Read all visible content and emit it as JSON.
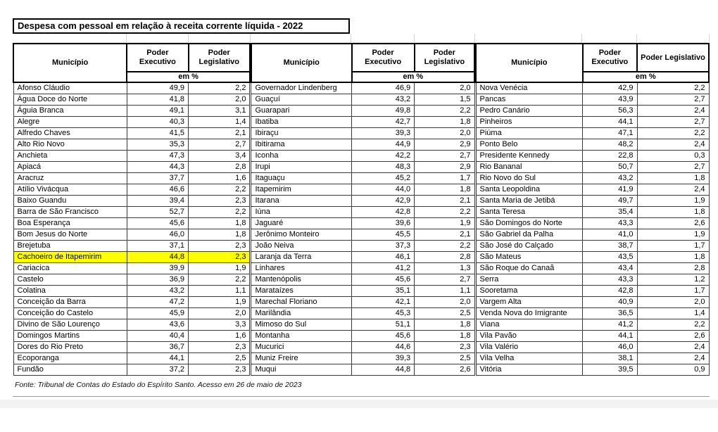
{
  "title": "Despesa com pessoal em relação à receita corrente líquida - 2022",
  "source_note": "Fonte: Tribunal de Contas do Estado do Espírito Santo. Acesso em 26 de maio de 2023",
  "highlight_color": "#ffff00",
  "columns": {
    "municipio": "Município",
    "executivo": "Poder Executivo",
    "legislativo": "Poder Legislativo",
    "unit": "em %"
  },
  "groups": [
    {
      "rows": [
        {
          "m": "Afonso Cláudio",
          "e": "49,9",
          "l": "2,2"
        },
        {
          "m": "Água Doce do Norte",
          "e": "41,8",
          "l": "2,0"
        },
        {
          "m": "Águia Branca",
          "e": "49,1",
          "l": "3,1"
        },
        {
          "m": "Alegre",
          "e": "40,3",
          "l": "1,4"
        },
        {
          "m": "Alfredo Chaves",
          "e": "41,5",
          "l": "2,1"
        },
        {
          "m": "Alto Rio Novo",
          "e": "35,3",
          "l": "2,7"
        },
        {
          "m": "Anchieta",
          "e": "47,3",
          "l": "3,4"
        },
        {
          "m": "Apiacá",
          "e": "44,3",
          "l": "2,8"
        },
        {
          "m": "Aracruz",
          "e": "37,7",
          "l": "1,6"
        },
        {
          "m": "Atílio Vivácqua",
          "e": "46,6",
          "l": "2,2"
        },
        {
          "m": "Baixo Guandu",
          "e": "39,4",
          "l": "2,3"
        },
        {
          "m": "Barra de São Francisco",
          "e": "52,7",
          "l": "2,2"
        },
        {
          "m": "Boa Esperança",
          "e": "45,6",
          "l": "1,8"
        },
        {
          "m": "Bom Jesus do Norte",
          "e": "46,0",
          "l": "1,8"
        },
        {
          "m": "Brejetuba",
          "e": "37,1",
          "l": "2,3"
        },
        {
          "m": "Cachoeiro de Itapemirim",
          "e": "44,8",
          "l": "2,3",
          "highlight": true
        },
        {
          "m": "Cariacica",
          "e": "39,9",
          "l": "1,9"
        },
        {
          "m": "Castelo",
          "e": "36,9",
          "l": "2,2"
        },
        {
          "m": "Colatina",
          "e": "43,2",
          "l": "1,1"
        },
        {
          "m": "Conceição da Barra",
          "e": "47,2",
          "l": "1,9"
        },
        {
          "m": "Conceição do Castelo",
          "e": "45,9",
          "l": "2,0"
        },
        {
          "m": "Divino de São Lourenço",
          "e": "43,6",
          "l": "3,3"
        },
        {
          "m": "Domingos Martins",
          "e": "40,4",
          "l": "1,6"
        },
        {
          "m": "Dores do Rio Preto",
          "e": "36,7",
          "l": "2,3"
        },
        {
          "m": "Ecoporanga",
          "e": "44,1",
          "l": "2,5"
        },
        {
          "m": "Fundão",
          "e": "37,2",
          "l": "2,3"
        }
      ]
    },
    {
      "rows": [
        {
          "m": "Governador Lindenberg",
          "e": "46,9",
          "l": "2,0"
        },
        {
          "m": "Guaçuí",
          "e": "43,2",
          "l": "1,5"
        },
        {
          "m": "Guarapari",
          "e": "49,8",
          "l": "2,2"
        },
        {
          "m": "Ibatiba",
          "e": "42,7",
          "l": "1,8"
        },
        {
          "m": "Ibiraçu",
          "e": "39,3",
          "l": "2,0"
        },
        {
          "m": "Ibitirama",
          "e": "44,9",
          "l": "2,9"
        },
        {
          "m": "Iconha",
          "e": "42,2",
          "l": "2,7"
        },
        {
          "m": "Irupi",
          "e": "48,3",
          "l": "2,9"
        },
        {
          "m": "Itaguaçu",
          "e": "45,2",
          "l": "1,7"
        },
        {
          "m": "Itapemirim",
          "e": "44,0",
          "l": "1,8"
        },
        {
          "m": "Itarana",
          "e": "42,9",
          "l": "2,1"
        },
        {
          "m": "Iúna",
          "e": "42,8",
          "l": "2,2"
        },
        {
          "m": "Jaguaré",
          "e": "39,6",
          "l": "1,9"
        },
        {
          "m": "Jerônimo Monteiro",
          "e": "45,5",
          "l": "2,1"
        },
        {
          "m": "João Neiva",
          "e": "37,3",
          "l": "2,2"
        },
        {
          "m": "Laranja da Terra",
          "e": "46,1",
          "l": "2,8"
        },
        {
          "m": "Linhares",
          "e": "41,2",
          "l": "1,3"
        },
        {
          "m": "Mantenópolis",
          "e": "45,6",
          "l": "2,7"
        },
        {
          "m": "Marataízes",
          "e": "35,1",
          "l": "1,1"
        },
        {
          "m": "Marechal Floriano",
          "e": "42,1",
          "l": "2,0"
        },
        {
          "m": "Marilândia",
          "e": "45,3",
          "l": "2,5"
        },
        {
          "m": "Mimoso do Sul",
          "e": "51,1",
          "l": "1,8"
        },
        {
          "m": "Montanha",
          "e": "45,6",
          "l": "1,8"
        },
        {
          "m": "Mucurici",
          "e": "44,6",
          "l": "2,3"
        },
        {
          "m": "Muniz Freire",
          "e": "39,3",
          "l": "2,5"
        },
        {
          "m": "Muqui",
          "e": "44,8",
          "l": "2,6"
        }
      ]
    },
    {
      "rows": [
        {
          "m": "Nova Venécia",
          "e": "42,9",
          "l": "2,2"
        },
        {
          "m": "Pancas",
          "e": "43,9",
          "l": "2,7"
        },
        {
          "m": "Pedro Canário",
          "e": "56,3",
          "l": "2,4"
        },
        {
          "m": "Pinheiros",
          "e": "44,1",
          "l": "2,7"
        },
        {
          "m": "Piúma",
          "e": "47,1",
          "l": "2,2"
        },
        {
          "m": "Ponto Belo",
          "e": "48,2",
          "l": "2,4"
        },
        {
          "m": "Presidente Kennedy",
          "e": "22,8",
          "l": "0,3"
        },
        {
          "m": "Rio Bananal",
          "e": "50,7",
          "l": "2,7"
        },
        {
          "m": "Rio Novo do Sul",
          "e": "43,2",
          "l": "1,8"
        },
        {
          "m": "Santa Leopoldina",
          "e": "41,9",
          "l": "2,4"
        },
        {
          "m": "Santa Maria de Jetibá",
          "e": "49,7",
          "l": "1,9"
        },
        {
          "m": "Santa Teresa",
          "e": "35,4",
          "l": "1,8"
        },
        {
          "m": "São Domingos do Norte",
          "e": "43,3",
          "l": "2,6"
        },
        {
          "m": "São Gabriel da Palha",
          "e": "41,0",
          "l": "1,9"
        },
        {
          "m": "São José do Calçado",
          "e": "38,7",
          "l": "1,7"
        },
        {
          "m": "São Mateus",
          "e": "43,5",
          "l": "1,8"
        },
        {
          "m": "São Roque do Canaã",
          "e": "43,4",
          "l": "2,8"
        },
        {
          "m": "Serra",
          "e": "43,3",
          "l": "1,2"
        },
        {
          "m": "Sooretama",
          "e": "42,8",
          "l": "1,7"
        },
        {
          "m": "Vargem Alta",
          "e": "40,9",
          "l": "2,0"
        },
        {
          "m": "Venda Nova do Imigrante",
          "e": "36,5",
          "l": "1,4"
        },
        {
          "m": "Viana",
          "e": "41,2",
          "l": "2,2"
        },
        {
          "m": "Vila Pavão",
          "e": "44,1",
          "l": "2,6"
        },
        {
          "m": "Vila Valério",
          "e": "46,0",
          "l": "2,4"
        },
        {
          "m": "Vila Velha",
          "e": "38,1",
          "l": "2,4"
        },
        {
          "m": "Vitória",
          "e": "39,5",
          "l": "0,9"
        }
      ]
    }
  ]
}
